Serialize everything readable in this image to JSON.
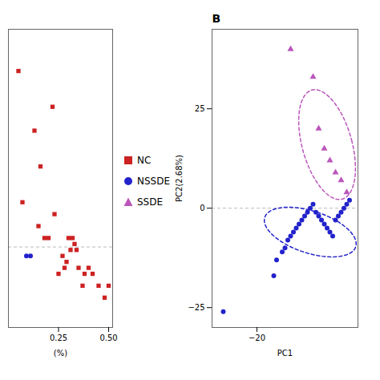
{
  "chart_data": [
    {
      "type": "scatter",
      "xlabel": "(%)",
      "xlim": [
        0.0,
        0.52
      ],
      "ylim": [
        -0.05,
        0.45
      ],
      "xticks": [
        0.25,
        {
          "value": 0.5,
          "label": "0.50"
        }
      ],
      "tick_labels": "x",
      "hlines": [
        0.085
      ],
      "legend": "right",
      "series": [
        {
          "name": "NC",
          "color": "#cc2222",
          "marker": "square",
          "x": [
            0.05,
            0.22,
            0.13,
            0.16,
            0.07,
            0.15,
            0.18,
            0.2,
            0.3,
            0.31,
            0.28,
            0.25,
            0.32,
            0.33,
            0.34,
            0.35,
            0.38,
            0.37,
            0.4,
            0.42,
            0.45,
            0.48,
            0.5,
            0.27,
            0.29,
            0.23
          ],
          "y": [
            0.38,
            0.32,
            0.28,
            0.22,
            0.16,
            0.12,
            0.1,
            0.1,
            0.1,
            0.08,
            0.05,
            0.04,
            0.1,
            0.09,
            0.08,
            0.05,
            0.04,
            0.02,
            0.05,
            0.04,
            0.02,
            0.0,
            0.02,
            0.07,
            0.06,
            0.14
          ]
        },
        {
          "name": "NSSDE",
          "color": "#2222cc",
          "marker": "circle",
          "x": [
            0.09,
            0.11
          ],
          "y": [
            0.07,
            0.07
          ]
        }
      ]
    },
    {
      "type": "scatter",
      "title": "B",
      "xlabel": "PC1",
      "ylabel": "PC2(2.68%)",
      "xlim": [
        -28,
        -2
      ],
      "ylim": [
        -30,
        45
      ],
      "xticks": [
        -20
      ],
      "yticks": [
        -25,
        0,
        25
      ],
      "hlines": [
        0
      ],
      "series": [
        {
          "name": "NSSDE",
          "color": "#2222cc",
          "marker": "circle",
          "x": [
            -26,
            -17,
            -16.5,
            -15.5,
            -15,
            -14.5,
            -14,
            -13.5,
            -13,
            -12.5,
            -12,
            -11.5,
            -11,
            -10.5,
            -10,
            -9.5,
            -9,
            -8.5,
            -8,
            -7.5,
            -7,
            -6.5,
            -6,
            -5.5,
            -5,
            -4.5,
            -4,
            -3.5
          ],
          "y": [
            -26,
            -17,
            -13,
            -11,
            -10,
            -8,
            -7,
            -6,
            -5,
            -4,
            -3,
            -2,
            -1,
            0,
            1,
            -1,
            -2,
            -3,
            -4,
            -5,
            -6,
            -7,
            -3,
            -2,
            -1,
            0,
            1,
            2
          ],
          "ellipse": {
            "cx": -10.5,
            "cy": -6,
            "width": 18,
            "height": 10,
            "angle": -30
          }
        },
        {
          "name": "SSDE",
          "color": "#bb55bb",
          "marker": "triangle",
          "x": [
            -14,
            -10,
            -9,
            -8,
            -7,
            -6,
            -5,
            -4
          ],
          "y": [
            40,
            33,
            20,
            15,
            12,
            9,
            7,
            4
          ],
          "ellipse": {
            "cx": -7.5,
            "cy": 16,
            "width": 9,
            "height": 28,
            "angle": 10
          }
        }
      ]
    }
  ]
}
